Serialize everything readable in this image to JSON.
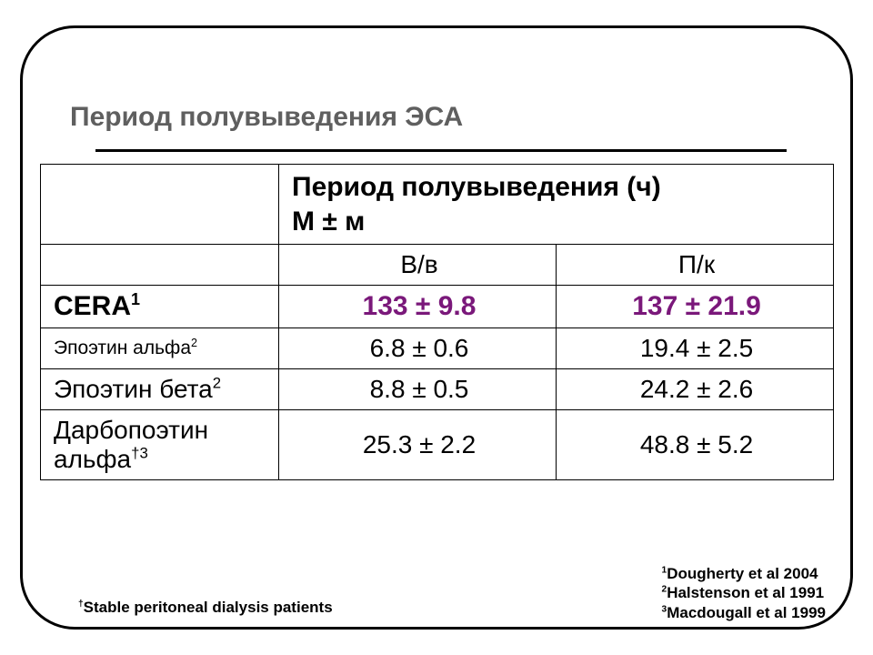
{
  "title": "Период полувыведения ЭСА",
  "table": {
    "header_main": "Период полувыведения (ч)\nM ± м",
    "sub_iv": "В/в",
    "sub_sc": "П/к",
    "rows": [
      {
        "name": "CERA",
        "sup": "1",
        "iv": "133 ± 9.8",
        "sc": "137 ± 21.9",
        "highlight": true,
        "small": false
      },
      {
        "name": "Эпоэтин альфа",
        "sup": "2",
        "iv": "6.8 ± 0.6",
        "sc": "19.4 ± 2.5",
        "highlight": false,
        "small": true
      },
      {
        "name": "Эпоэтин бета",
        "sup": "2",
        "iv": "8.8 ± 0.5",
        "sc": "24.2 ± 2.6",
        "highlight": false,
        "small": false
      },
      {
        "name": "Дарбопоэтин альфа",
        "sup": "†3",
        "iv": "25.3 ± 2.2",
        "sc": "48.8 ± 5.2",
        "highlight": false,
        "small": false
      }
    ]
  },
  "footnote_left_sup": "†",
  "footnote_left": "Stable peritoneal dialysis patients",
  "refs": [
    {
      "n": "1",
      "text": "Dougherty et al 2004"
    },
    {
      "n": "2",
      "text": "Halstenson et al 1991"
    },
    {
      "n": "3",
      "text": "Macdougall et al 1999"
    }
  ],
  "colors": {
    "title": "#5f5f5f",
    "highlight": "#7a187a",
    "border": "#000000",
    "text": "#000000",
    "background": "#ffffff"
  }
}
